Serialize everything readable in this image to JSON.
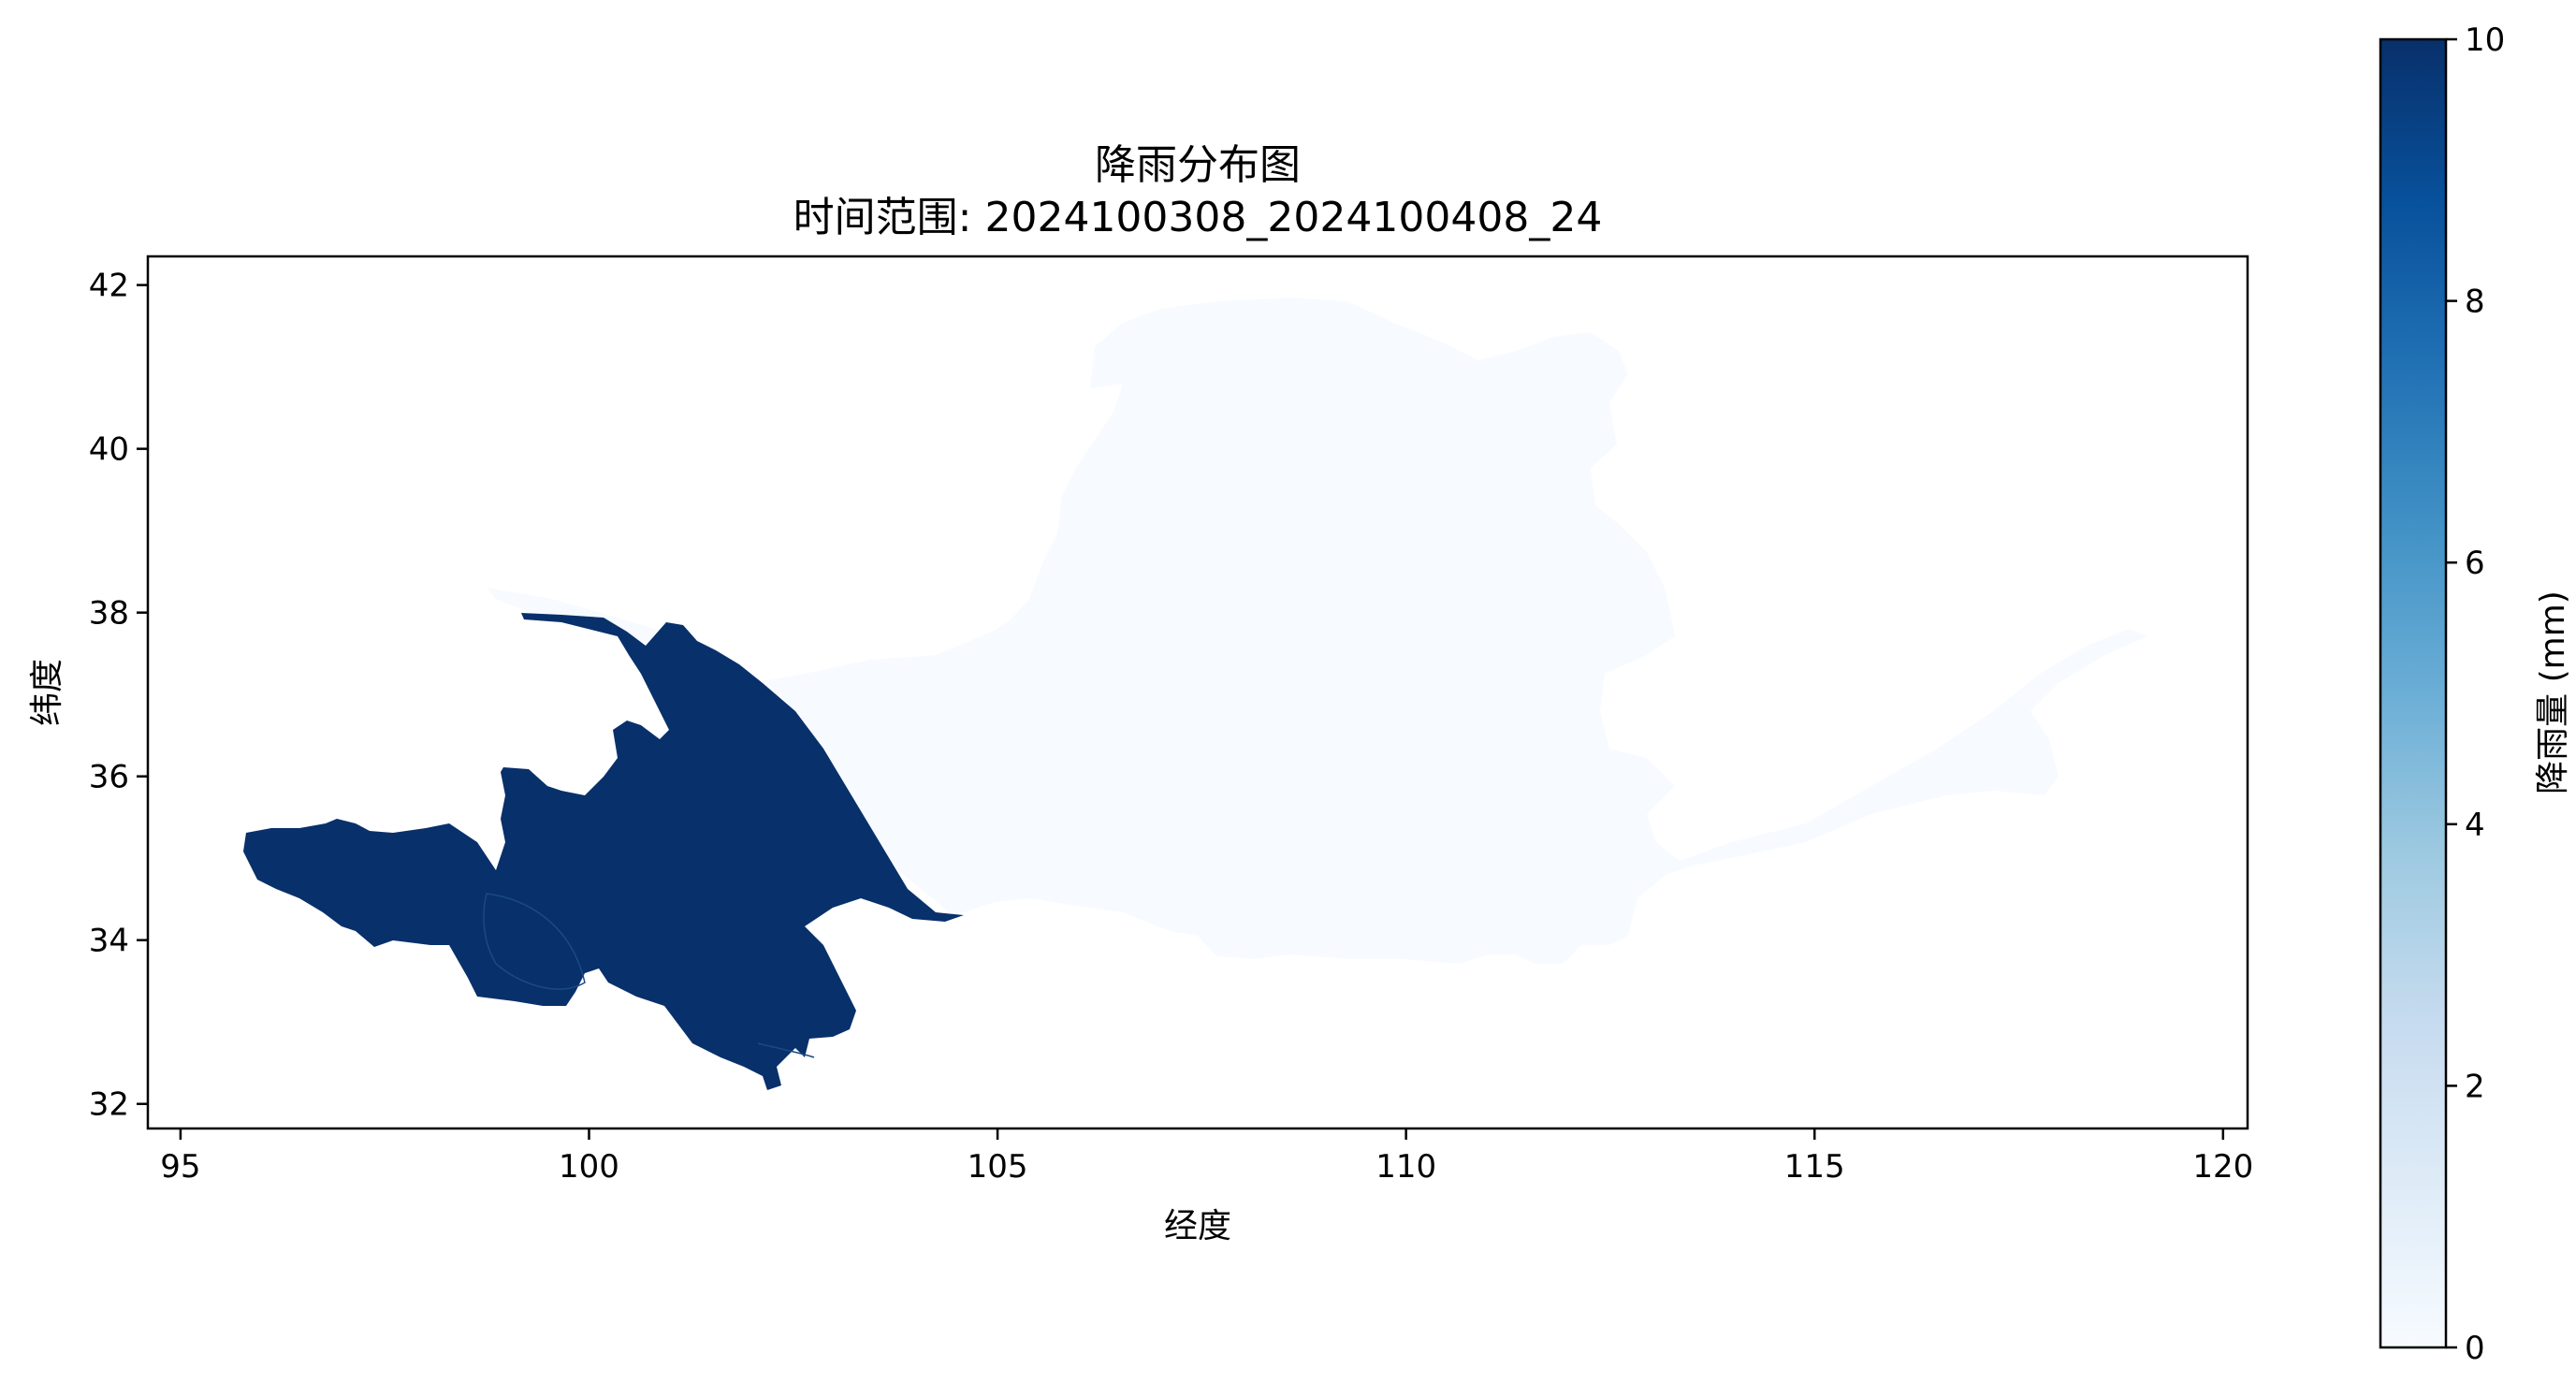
{
  "figure": {
    "title": "降雨分布图",
    "subtitle": "时间范围: 2024100308_2024100408_24"
  },
  "map": {
    "xlabel": "经度",
    "ylabel": "纬度",
    "xlim": [
      94.6,
      120.3
    ],
    "ylim": [
      31.7,
      42.35
    ],
    "xticks": [
      95,
      100,
      105,
      110,
      115,
      120
    ],
    "yticks": [
      32,
      34,
      36,
      38,
      40,
      42
    ],
    "region_colors": {
      "background": "#ffffff",
      "low_rain_region": "#f7fbff",
      "high_rain_region": "#08306b"
    }
  },
  "colorbar": {
    "label": "降雨量 (mm)",
    "range": [
      0,
      10
    ],
    "ticks": [
      0,
      2,
      4,
      6,
      8,
      10
    ],
    "colormap": "Blues",
    "stops": [
      "#f7fbff",
      "#deebf7",
      "#c6dbef",
      "#9ecae1",
      "#6baed6",
      "#4292c6",
      "#2171b5",
      "#08519c",
      "#08306b"
    ]
  },
  "chart_data": {
    "type": "heatmap",
    "title": "降雨分布图",
    "subtitle": "时间范围: 2024100308_2024100408_24",
    "xlabel": "经度",
    "ylabel": "纬度",
    "xlim": [
      94.6,
      120.3
    ],
    "ylim": [
      31.7,
      42.35
    ],
    "colorbar_range": [
      0,
      10
    ],
    "colorbar_label": "降雨量 (mm)",
    "regions": [
      {
        "extent_lon": [
          95.9,
          104.7
        ],
        "extent_lat": [
          32.2,
          38.0
        ],
        "rainfall_mm": 10
      },
      {
        "extent_lon": [
          98.9,
          119.2
        ],
        "extent_lat": [
          33.6,
          41.8
        ],
        "rainfall_mm": 0
      }
    ]
  }
}
